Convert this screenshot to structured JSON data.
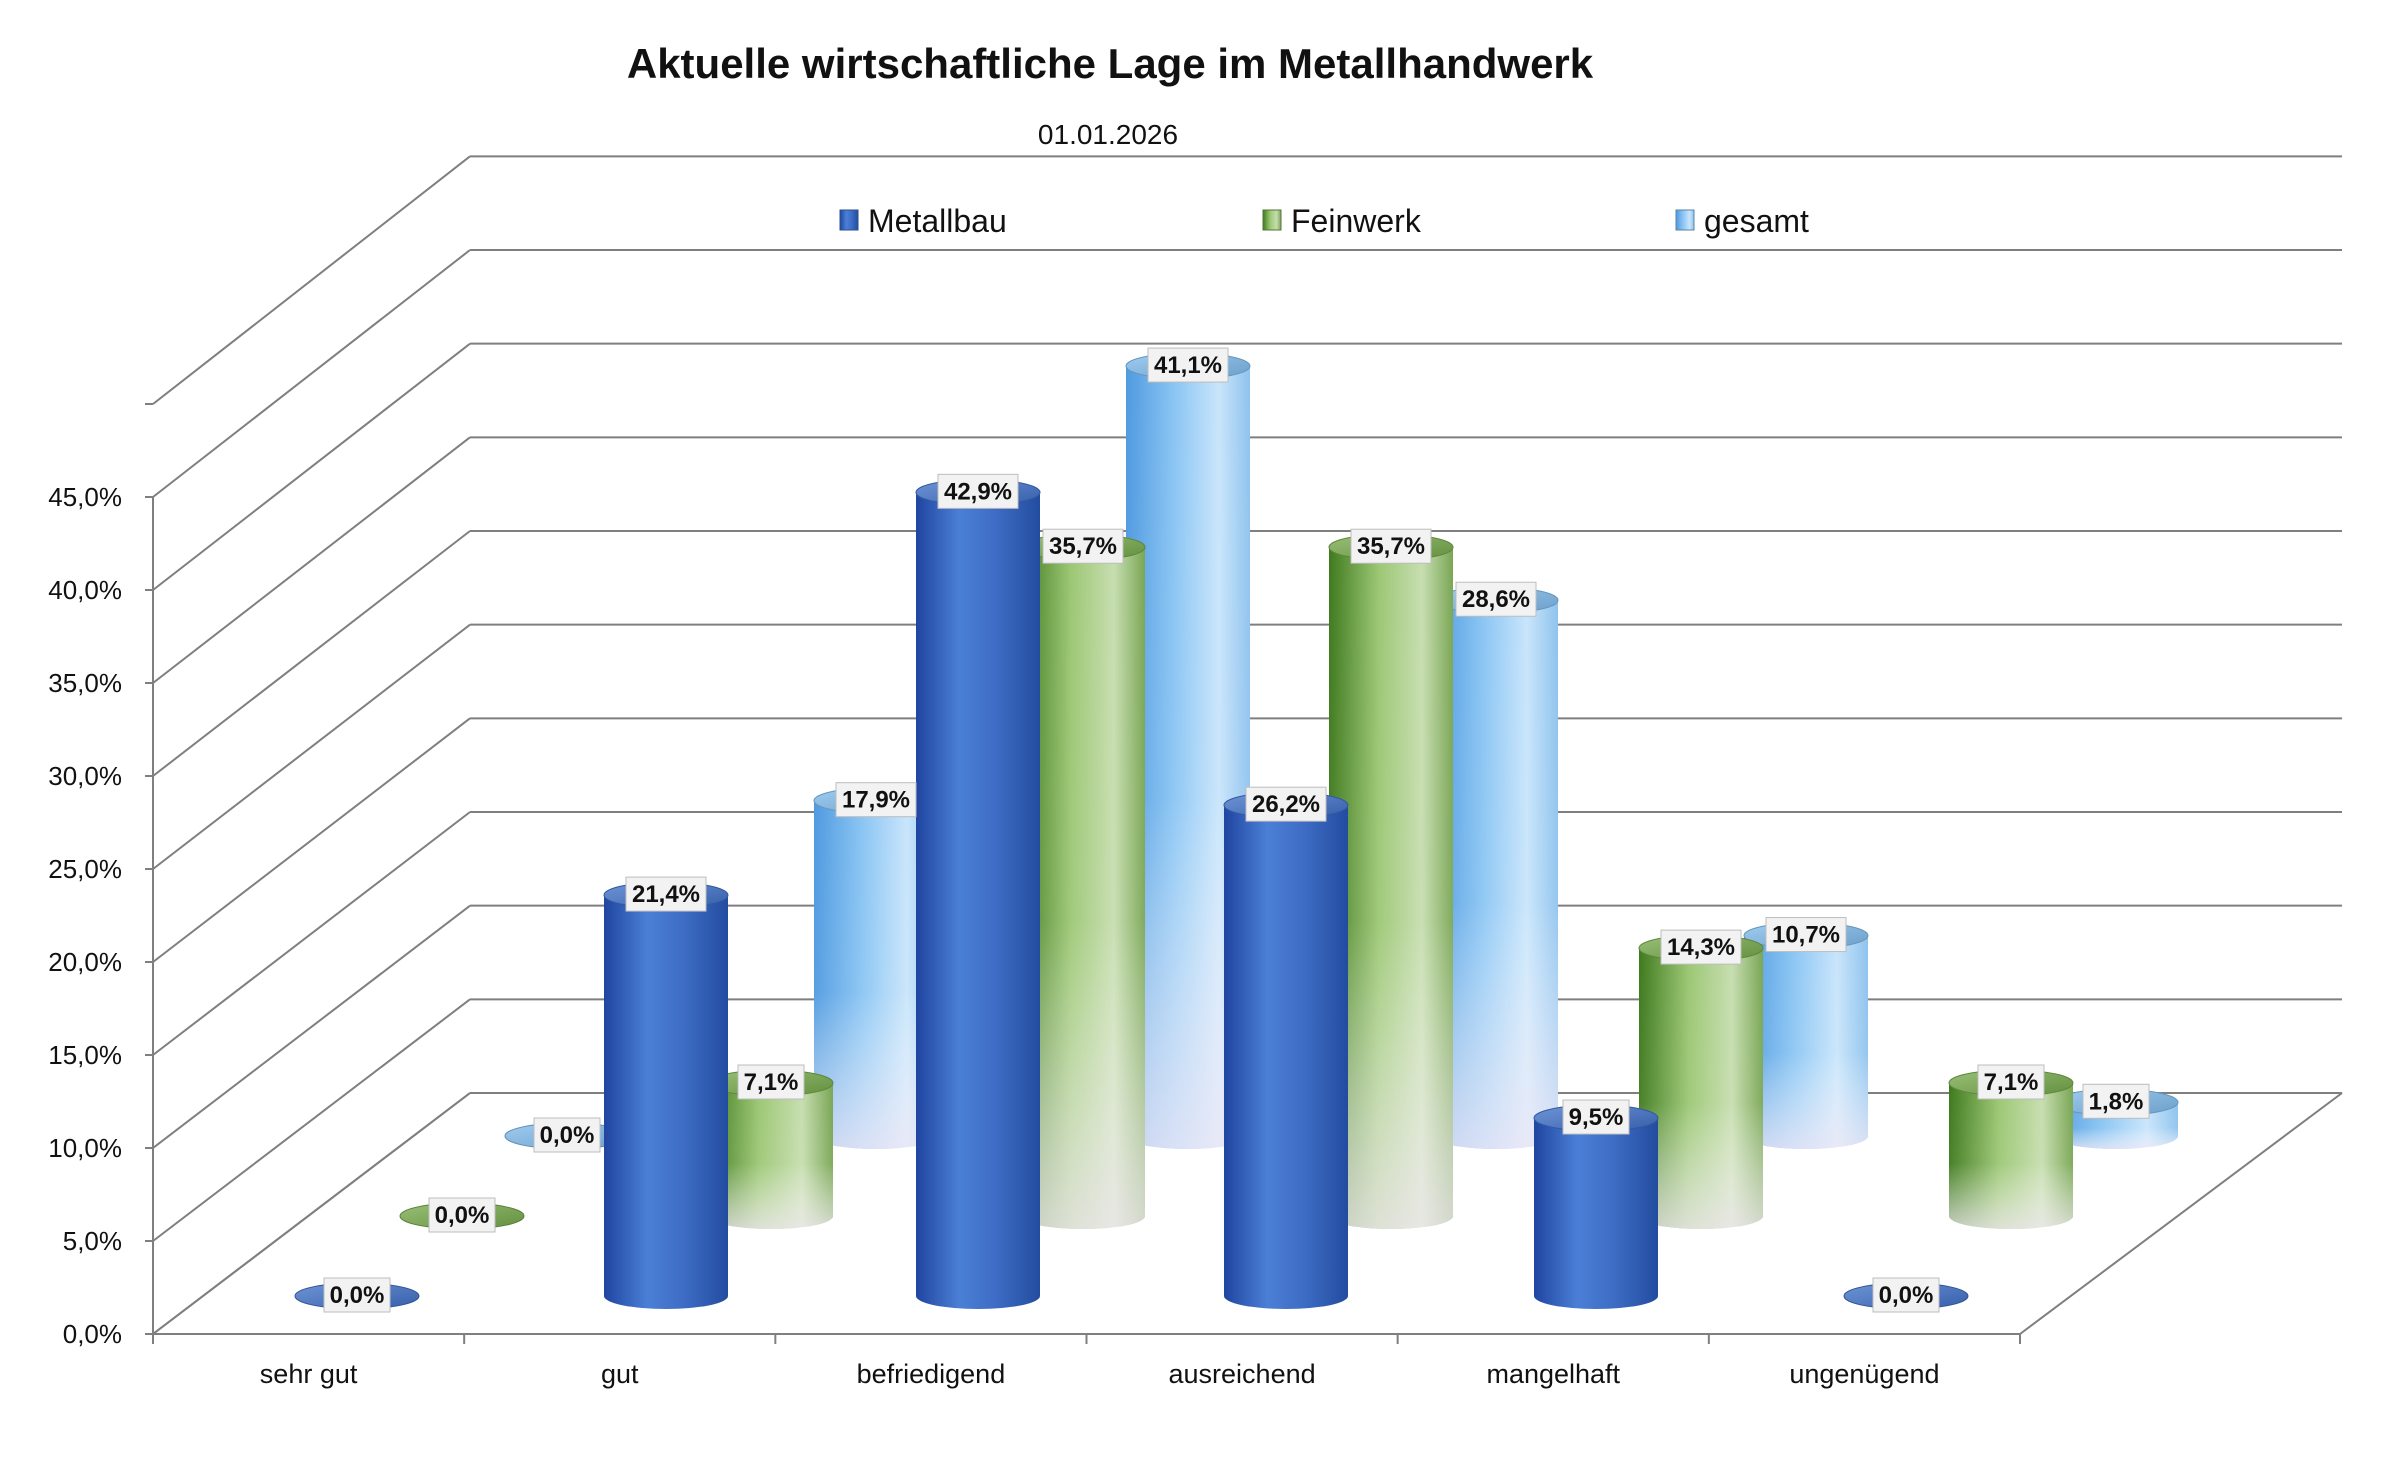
{
  "colors": {
    "Metallbau": "#3f70c8",
    "Feinwerk": "#76a94a",
    "gesamt": "#7fbbec",
    "grid": "#7f7f7f"
  },
  "chart_data": {
    "type": "bar",
    "title": "Aktuelle wirtschaftliche Lage im Metallhandwerk",
    "subtitle": "01.01.2026",
    "xlabel": "",
    "ylabel": "",
    "ylim": [
      0,
      45
    ],
    "yticks": [
      "0,0%",
      "5,0%",
      "10,0%",
      "15,0%",
      "20,0%",
      "25,0%",
      "30,0%",
      "35,0%",
      "40,0%",
      "45,0%"
    ],
    "categories": [
      "sehr gut",
      "gut",
      "befriedigend",
      "ausreichend",
      "mangelhaft",
      "ungenügend"
    ],
    "series": [
      {
        "name": "Metallbau",
        "values": [
          0.0,
          21.4,
          42.9,
          26.2,
          9.5,
          0.0
        ],
        "labels": [
          "0,0%",
          "21,4%",
          "42,9%",
          "26,2%",
          "9,5%",
          "0,0%"
        ]
      },
      {
        "name": "Feinwerk",
        "values": [
          0.0,
          7.1,
          35.7,
          35.7,
          14.3,
          7.1
        ],
        "labels": [
          "0,0%",
          "7,1%",
          "35,7%",
          "35,7%",
          "14,3%",
          "7,1%"
        ]
      },
      {
        "name": "gesamt",
        "values": [
          0.0,
          17.9,
          41.1,
          28.6,
          10.7,
          1.8
        ],
        "labels": [
          "0,0%",
          "17,9%",
          "41,1%",
          "28,6%",
          "10,7%",
          "1,8%"
        ]
      }
    ],
    "legend": "top",
    "grid": true,
    "style": "3d-cylinder"
  }
}
